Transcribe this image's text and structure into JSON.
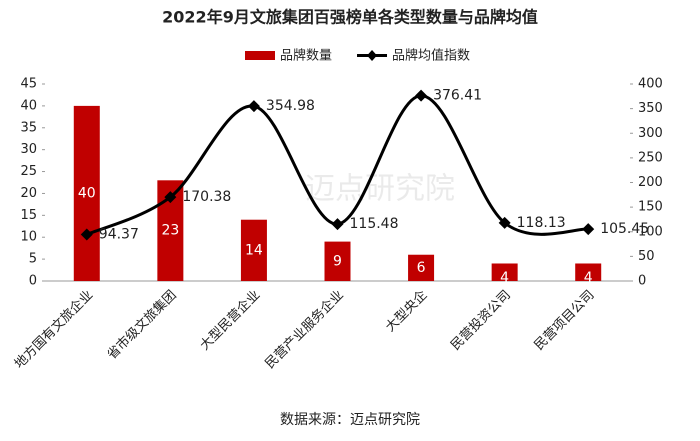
{
  "chart_data": {
    "type": "bar",
    "title": "2022年9月文旅集团百强榜单各类型数量与品牌均值",
    "source": "数据来源：迈点研究院",
    "watermark": "迈点研究院",
    "categories": [
      "地方国有文旅企业",
      "省市级文旅集团",
      "大型民营企业",
      "民营产业服务企业",
      "大型央企",
      "民营投资公司",
      "民营项目公司"
    ],
    "series": [
      {
        "name": "品牌数量",
        "type": "bar",
        "color": "#c00000",
        "values": [
          40,
          23,
          14,
          9,
          6,
          4,
          4
        ]
      },
      {
        "name": "品牌均值指数",
        "type": "line",
        "axis": "y2",
        "color": "#000000",
        "values": [
          94.37,
          170.38,
          354.98,
          115.48,
          376.41,
          118.13,
          105.45
        ]
      }
    ],
    "ylim": [
      0,
      45
    ],
    "yticks": [
      0,
      5,
      10,
      15,
      20,
      25,
      30,
      35,
      40,
      45
    ],
    "y2lim": [
      0,
      400
    ],
    "y2ticks": [
      0,
      50,
      100,
      150,
      200,
      250,
      300,
      350,
      400
    ],
    "legend": "top",
    "grid": false
  }
}
